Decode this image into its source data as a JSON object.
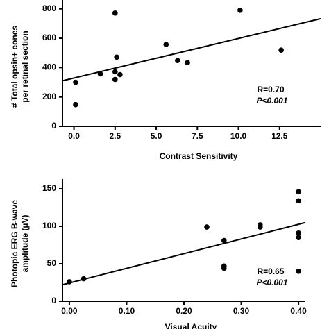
{
  "chart_data": [
    {
      "type": "scatter",
      "xlabel": "Contrast Sensitivity",
      "ylabel": [
        "# Total opsin+ cones",
        "per retinal section"
      ],
      "annotations": [
        "R=0.70",
        "P<0.001"
      ],
      "color": "#000000",
      "x": [
        0.1,
        0.1,
        1.6,
        2.5,
        2.6,
        2.5,
        2.8,
        2.5,
        5.6,
        6.3,
        6.9,
        10.1,
        12.6
      ],
      "y": [
        300,
        148,
        357,
        771,
        471,
        371,
        352,
        319,
        557,
        448,
        433,
        790,
        519
      ],
      "fit": {
        "x": [
          -0.7,
          15
        ],
        "y": [
          310,
          733
        ]
      },
      "xlim": [
        -0.7,
        15
      ],
      "ylim": [
        0,
        860
      ],
      "xticks": [
        {
          "value": 0,
          "label": "0.0"
        },
        2.5,
        {
          "value": 5,
          "label": "5.0"
        },
        7.5,
        {
          "value": 10,
          "label": "10.0"
        },
        12.5
      ],
      "yticks": [
        0,
        200,
        400,
        600,
        800
      ]
    },
    {
      "type": "scatter",
      "xlabel": "Visual Acuity",
      "ylabel": [
        "Photopic ERG B-wave",
        "amplitude (µV)"
      ],
      "annotations": [
        "R=0.65",
        "P<0.001"
      ],
      "color": "#000000",
      "x": [
        0.0,
        0.025,
        0.24,
        0.27,
        0.27,
        0.27,
        0.333,
        0.333,
        0.4,
        0.4,
        0.4,
        0.4,
        0.4
      ],
      "y": [
        26,
        30,
        99,
        81,
        47,
        44,
        102,
        99,
        146,
        134,
        91,
        85,
        40
      ],
      "fit": {
        "x": [
          -0.012,
          0.412
        ],
        "y": [
          22,
          105
        ]
      },
      "xlim": [
        -0.012,
        0.412
      ],
      "ylim": [
        0,
        163
      ],
      "xticks": [
        {
          "value": 0,
          "label": "0.00"
        },
        {
          "value": 0.1,
          "label": "0.10"
        },
        {
          "value": 0.2,
          "label": "0.20"
        },
        {
          "value": 0.3,
          "label": "0.30"
        },
        {
          "value": 0.4,
          "label": "0.40"
        }
      ],
      "yticks": [
        0,
        50,
        100,
        150
      ]
    }
  ]
}
